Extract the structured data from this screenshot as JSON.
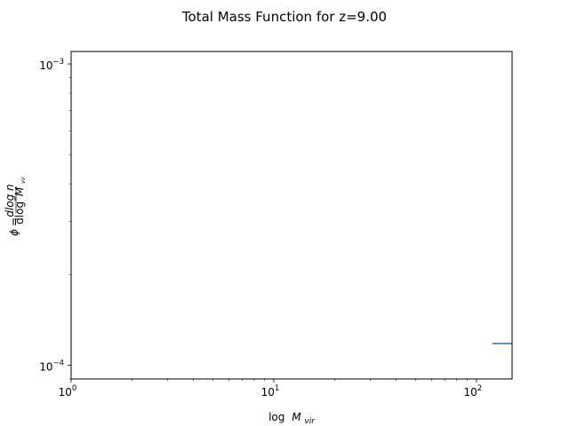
{
  "chart_data": {
    "type": "line",
    "title": "Total Mass Function for z=9.00",
    "xscale": "log",
    "yscale": "log",
    "xlim": [
      1,
      150
    ],
    "ylim": [
      9e-05,
      0.0011
    ],
    "x_ticks": [
      {
        "value": 1,
        "base": "10",
        "exp": "0"
      },
      {
        "value": 10,
        "base": "10",
        "exp": "1"
      },
      {
        "value": 100,
        "base": "10",
        "exp": "2"
      }
    ],
    "y_ticks": [
      {
        "value": 0.0001,
        "base": "10",
        "exp": "−4"
      },
      {
        "value": 0.001,
        "base": "10",
        "exp": "−3"
      }
    ],
    "xlabel": {
      "prefix": "log",
      "var": "M",
      "sub": "vir"
    },
    "ylabel": {
      "lhs": "ϕ",
      "num": "dlog n",
      "den_log": "dlog",
      "den_var": "M",
      "den_sub": "vir"
    },
    "series": [
      {
        "color": "#1f77b4",
        "x": [
          120,
          150
        ],
        "y": [
          0.000118,
          0.000118
        ]
      }
    ],
    "grid": false
  }
}
